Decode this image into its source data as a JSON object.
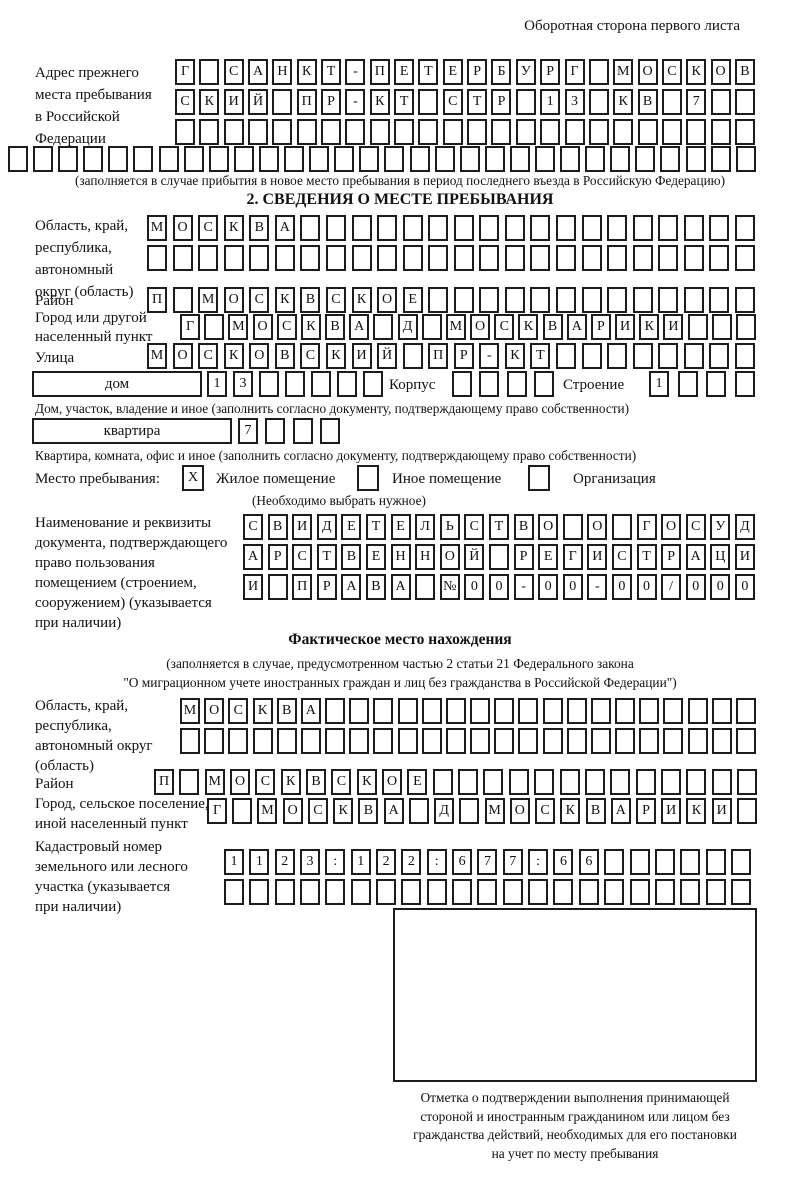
{
  "header": {
    "back_side_note": "Оборотная сторона первого листа"
  },
  "prev_address": {
    "label_lines": [
      "Адрес прежнего",
      "места пребывания",
      "в Российской",
      "Федерации"
    ],
    "r1": [
      "Г",
      "",
      "С",
      "А",
      "Н",
      "К",
      "Т",
      "-",
      "П",
      "Е",
      "Т",
      "Е",
      "Р",
      "Б",
      "У",
      "Р",
      "Г",
      "",
      "М",
      "О",
      "С",
      "К",
      "О",
      "В"
    ],
    "r2": [
      "С",
      "К",
      "И",
      "Й",
      "",
      "П",
      "Р",
      "-",
      "К",
      "Т",
      "",
      "С",
      "Т",
      "Р",
      "",
      "1",
      "3",
      "",
      "К",
      "В",
      "",
      "7",
      "",
      ""
    ],
    "r3": [
      "",
      "",
      "",
      "",
      "",
      "",
      "",
      "",
      "",
      "",
      "",
      "",
      "",
      "",
      "",
      "",
      "",
      "",
      "",
      "",
      "",
      "",
      "",
      ""
    ],
    "r4": [
      "",
      "",
      "",
      "",
      "",
      "",
      "",
      "",
      "",
      "",
      "",
      "",
      "",
      "",
      "",
      "",
      "",
      "",
      "",
      "",
      "",
      "",
      "",
      "",
      "",
      "",
      "",
      "",
      "",
      ""
    ],
    "caption": "(заполняется в случае прибытия в новое место пребывания в период последнего въезда в Российскую Федерацию)"
  },
  "section2": {
    "title": "2. СВЕДЕНИЯ О МЕСТЕ ПРЕБЫВАНИЯ",
    "oblast": {
      "label_lines": [
        "Область, край,",
        "республика,",
        "автономный",
        "округ (область)"
      ],
      "r1": [
        "М",
        "О",
        "С",
        "К",
        "В",
        "А",
        "",
        "",
        "",
        "",
        "",
        "",
        "",
        "",
        "",
        "",
        "",
        "",
        "",
        "",
        "",
        "",
        "",
        ""
      ],
      "r2": [
        "",
        "",
        "",
        "",
        "",
        "",
        "",
        "",
        "",
        "",
        "",
        "",
        "",
        "",
        "",
        "",
        "",
        "",
        "",
        "",
        "",
        "",
        "",
        ""
      ]
    },
    "rayon": {
      "label": "Район",
      "r1": [
        "П",
        "",
        "М",
        "О",
        "С",
        "К",
        "В",
        "С",
        "К",
        "О",
        "Е",
        "",
        "",
        "",
        "",
        "",
        "",
        "",
        "",
        "",
        "",
        "",
        "",
        ""
      ]
    },
    "city": {
      "label_lines": [
        "Город или другой",
        "населенный пункт"
      ],
      "r1": [
        "Г",
        "",
        "М",
        "О",
        "С",
        "К",
        "В",
        "А",
        "",
        "Д",
        "",
        "М",
        "О",
        "С",
        "К",
        "В",
        "А",
        "Р",
        "И",
        "К",
        "И",
        "",
        "",
        ""
      ]
    },
    "street": {
      "label": "Улица",
      "r1": [
        "М",
        "О",
        "С",
        "К",
        "О",
        "В",
        "С",
        "К",
        "И",
        "Й",
        "",
        "П",
        "Р",
        "-",
        "К",
        "Т",
        "",
        "",
        "",
        "",
        "",
        "",
        "",
        ""
      ]
    },
    "house": {
      "box_label": "дом",
      "cells": [
        "1",
        "3",
        "",
        "",
        "",
        "",
        ""
      ],
      "korpus_label": "Корпус",
      "korpus_cells": [
        "",
        "",
        "",
        ""
      ],
      "stroenie_label": "Строение",
      "stroenie_cells": [
        "1",
        "",
        "",
        ""
      ],
      "caption": "Дом, участок, владение и иное (заполнить согласно документу, подтверждающему право собственности)"
    },
    "apartment": {
      "box_label": "квартира",
      "cells": [
        "7",
        "",
        "",
        ""
      ],
      "caption": "Квартира, комната, офис и иное (заполнить согласно документу, подтверждающему право собственности)"
    },
    "stay_type": {
      "label": "Место пребывания:",
      "options": [
        {
          "label": "Жилое помещение",
          "checked": "X"
        },
        {
          "label": "Иное помещение",
          "checked": ""
        },
        {
          "label": "Организация",
          "checked": ""
        }
      ],
      "note": "(Необходимо выбрать нужное)"
    },
    "document": {
      "label_lines": [
        "Наименование и реквизиты",
        "документа, подтверждающего",
        "право пользования",
        "помещением (строением,",
        "сооружением) (указывается",
        "при наличии)"
      ],
      "r1": [
        "С",
        "В",
        "И",
        "Д",
        "Е",
        "Т",
        "Е",
        "Л",
        "Ь",
        "С",
        "Т",
        "В",
        "О",
        "",
        "О",
        "",
        "Г",
        "О",
        "С",
        "У",
        "Д"
      ],
      "r2": [
        "А",
        "Р",
        "С",
        "Т",
        "В",
        "Е",
        "Н",
        "Н",
        "О",
        "Й",
        "",
        "Р",
        "Е",
        "Г",
        "И",
        "С",
        "Т",
        "Р",
        "А",
        "Ц",
        "И"
      ],
      "r3": [
        "И",
        "",
        "П",
        "Р",
        "А",
        "В",
        "А",
        "",
        "№",
        "0",
        "0",
        "-",
        "0",
        "0",
        "-",
        "0",
        "0",
        "/",
        "0",
        "0",
        "0"
      ]
    }
  },
  "actual_location": {
    "title": "Фактическое место нахождения",
    "caption_lines": [
      "(заполняется в случае, предусмотренном частью 2 статьи 21 Федерального закона",
      "\"О миграционном учете иностранных граждан и лиц без гражданства в Российской Федерации\")"
    ],
    "oblast": {
      "label_lines": [
        "Область, край,",
        "республика,",
        "автономный округ",
        "(область)"
      ],
      "r1": [
        "М",
        "О",
        "С",
        "К",
        "В",
        "А",
        "",
        "",
        "",
        "",
        "",
        "",
        "",
        "",
        "",
        "",
        "",
        "",
        "",
        "",
        "",
        "",
        "",
        ""
      ],
      "r2": [
        "",
        "",
        "",
        "",
        "",
        "",
        "",
        "",
        "",
        "",
        "",
        "",
        "",
        "",
        "",
        "",
        "",
        "",
        "",
        "",
        "",
        "",
        "",
        ""
      ]
    },
    "rayon": {
      "label": "Район",
      "r1": [
        "П",
        "",
        "М",
        "О",
        "С",
        "К",
        "В",
        "С",
        "К",
        "О",
        "Е",
        "",
        "",
        "",
        "",
        "",
        "",
        "",
        "",
        "",
        "",
        "",
        "",
        ""
      ]
    },
    "city": {
      "label_lines": [
        "Город, сельское поселение,",
        "иной населенный пункт"
      ],
      "r1": [
        "Г",
        "",
        "М",
        "О",
        "С",
        "К",
        "В",
        "А",
        "",
        "Д",
        "",
        "М",
        "О",
        "С",
        "К",
        "В",
        "А",
        "Р",
        "И",
        "К",
        "И",
        ""
      ]
    },
    "cadastral": {
      "label_lines": [
        "Кадастровый номер",
        "земельного или лесного",
        "участка (указывается",
        "при наличии)"
      ],
      "r1": [
        "1",
        "1",
        "2",
        "3",
        ":",
        "1",
        "2",
        "2",
        ":",
        "6",
        "7",
        "7",
        ":",
        "6",
        "6",
        "",
        "",
        "",
        "",
        "",
        ""
      ],
      "r2": [
        "",
        "",
        "",
        "",
        "",
        "",
        "",
        "",
        "",
        "",
        "",
        "",
        "",
        "",
        "",
        "",
        "",
        "",
        "",
        "",
        ""
      ]
    },
    "stamp_caption_lines": [
      "Отметка о подтверждении выполнения принимающей",
      "стороной и иностранным гражданином или лицом без",
      "гражданства действий, необходимых для его постановки",
      "на учет по месту пребывания"
    ]
  }
}
